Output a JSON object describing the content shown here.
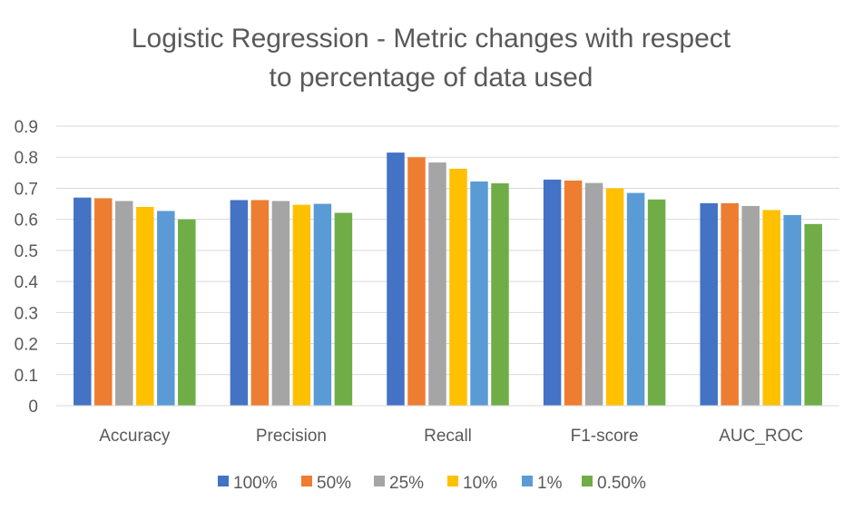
{
  "chart_data": {
    "type": "bar",
    "title_lines": [
      "Logistic Regression - Metric changes with respect",
      "to percentage of data used"
    ],
    "categories": [
      "Accuracy",
      "Precision",
      "Recall",
      "F1-score",
      "AUC_ROC"
    ],
    "series": [
      {
        "name": "100%",
        "color": "#4472C4",
        "values": [
          0.67,
          0.662,
          0.815,
          0.728,
          0.652
        ]
      },
      {
        "name": "50%",
        "color": "#ED7D31",
        "values": [
          0.668,
          0.662,
          0.8,
          0.725,
          0.652
        ]
      },
      {
        "name": "25%",
        "color": "#A5A5A5",
        "values": [
          0.659,
          0.659,
          0.783,
          0.717,
          0.643
        ]
      },
      {
        "name": "10%",
        "color": "#FFC000",
        "values": [
          0.64,
          0.647,
          0.763,
          0.7,
          0.63
        ]
      },
      {
        "name": "1%",
        "color": "#5B9BD5",
        "values": [
          0.627,
          0.65,
          0.722,
          0.685,
          0.614
        ]
      },
      {
        "name": "0.50%",
        "color": "#70AD47",
        "values": [
          0.6,
          0.621,
          0.716,
          0.664,
          0.585
        ]
      }
    ],
    "ylim": [
      0,
      0.9
    ],
    "yticks": [
      "0",
      "0.1",
      "0.2",
      "0.3",
      "0.4",
      "0.5",
      "0.6",
      "0.7",
      "0.8",
      "0.9"
    ],
    "grid": true,
    "legend_position": "bottom"
  }
}
